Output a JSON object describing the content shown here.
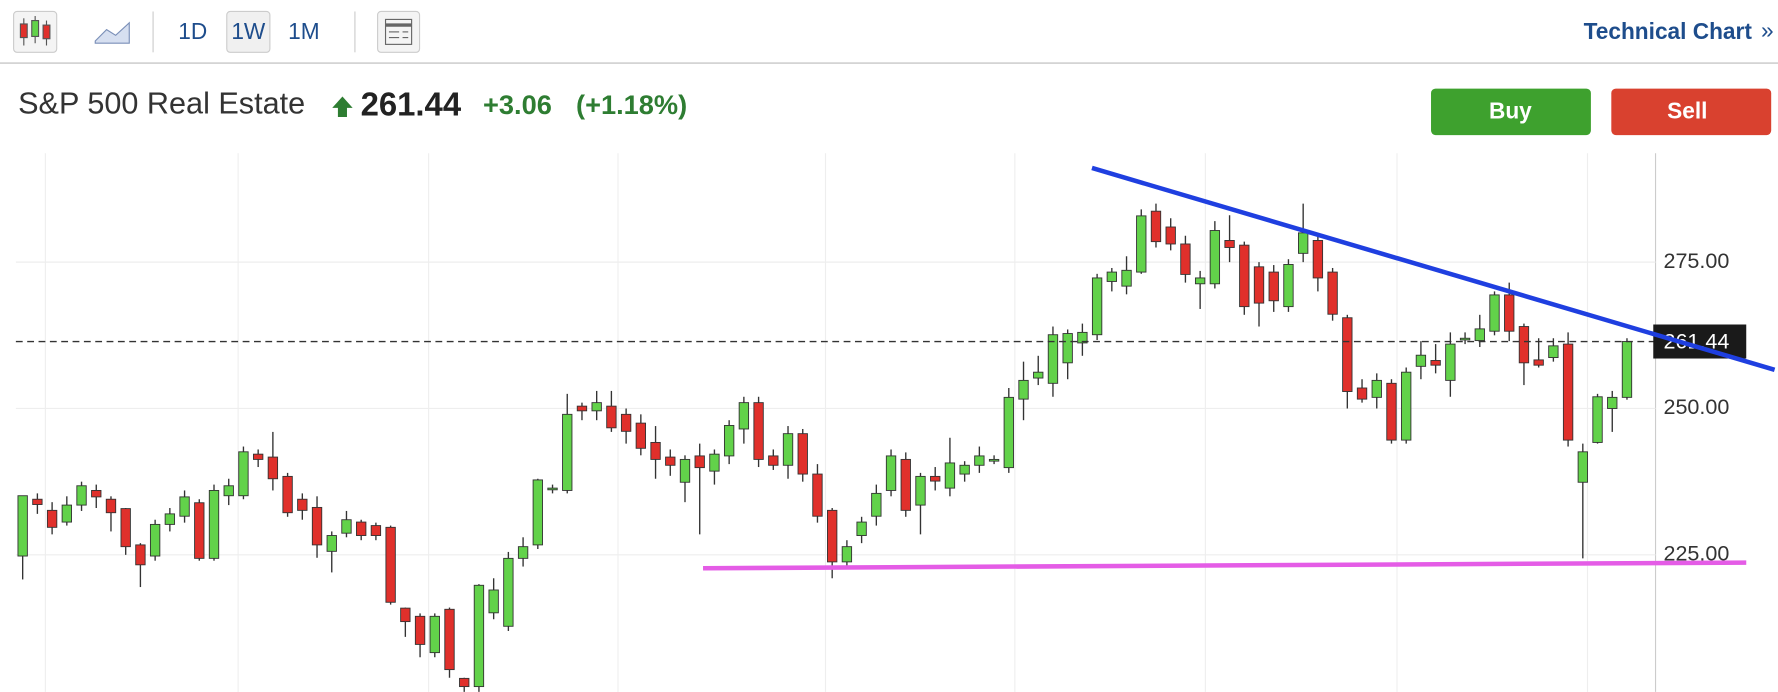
{
  "toolbar": {
    "periods": [
      "1D",
      "1W",
      "1M"
    ],
    "link": "Technical Chart",
    "link_icon": "»"
  },
  "header": {
    "name": "S&P 500 Real Estate",
    "price": 261.44,
    "change": "+3.06",
    "change_pct": "(+1.18%)"
  },
  "buttons": {
    "buy": "Buy",
    "sell": "Sell"
  },
  "chart_data": {
    "type": "candlestick",
    "up_color": "#62d24a",
    "down_color": "#e0302b",
    "grid": true,
    "ylim": [
      201.6,
      293.6
    ],
    "yticks": [
      {
        "value": 225,
        "label": "225.00"
      },
      {
        "value": 250,
        "label": "250.00"
      },
      {
        "value": 275,
        "label": "275.00"
      }
    ],
    "open": [
      224.8,
      234.5,
      232.6,
      230.6,
      233.5,
      236,
      234.5,
      232.9,
      226.7,
      224.8,
      230.2,
      231.6,
      233.9,
      224.4,
      235.1,
      235.1,
      242.2,
      241.7,
      238.4,
      234.5,
      233.1,
      225.6,
      228.7,
      230.6,
      230,
      229.7,
      215.9,
      214.5,
      208.3,
      215.7,
      203.9,
      202.5,
      215.1,
      212.8,
      224.4,
      226.7,
      236.4,
      236,
      250.4,
      249.6,
      250.4,
      249,
      247.5,
      244.2,
      241.7,
      237.4,
      241.9,
      239.3,
      241.9,
      246.5,
      251,
      241.9,
      240.3,
      245.7,
      238.8,
      232.6,
      223.8,
      228.3,
      231.6,
      236,
      241.3,
      233.5,
      238.4,
      236.4,
      238.8,
      240.3,
      241.3,
      239.9,
      251.6,
      255.2,
      254.3,
      257.8,
      261.2,
      262.6,
      271.7,
      270.9,
      273.3,
      283.7,
      281,
      278.1,
      271.3,
      271.3,
      278.7,
      277.9,
      274.2,
      273.3,
      267.4,
      276.5,
      278.7,
      273.3,
      265.5,
      253.5,
      251.9,
      254.3,
      244.6,
      257.2,
      258.2,
      254.8,
      261.8,
      261.6,
      263.2,
      269.4,
      264,
      258.3,
      258.7,
      261,
      237.4,
      244.2,
      250,
      251.9
    ],
    "high": [
      235.1,
      235.5,
      234,
      235,
      237.5,
      237,
      235,
      233,
      227,
      231,
      233,
      236,
      234.5,
      237,
      238,
      243.5,
      243,
      246,
      239,
      235.5,
      235,
      229,
      232.5,
      231,
      230.5,
      230,
      216,
      215,
      215,
      216,
      204,
      220,
      221,
      225.5,
      228,
      238,
      237,
      252.5,
      251,
      253,
      253,
      250,
      249,
      247,
      243,
      242,
      244,
      243,
      248,
      252,
      252,
      243,
      247,
      246.5,
      240.5,
      233,
      227.5,
      231.5,
      237,
      243,
      242.5,
      239,
      240,
      245,
      241,
      243.5,
      242,
      253.5,
      258,
      259,
      264,
      263.5,
      264.5,
      273,
      274,
      276,
      284,
      285,
      282.5,
      279.5,
      273.5,
      282,
      283,
      278.5,
      275,
      274.5,
      275.5,
      285,
      280,
      274,
      266,
      255,
      256,
      255,
      257,
      261.5,
      261,
      263,
      263,
      266,
      270,
      271.5,
      264.5,
      262,
      262,
      263,
      244,
      252.5,
      253,
      262
    ],
    "low": [
      220.8,
      232,
      228.5,
      230,
      232.5,
      233,
      229,
      225,
      219.5,
      224,
      229,
      230.5,
      224,
      224,
      233.5,
      234.5,
      240,
      236,
      231.5,
      231,
      224.5,
      222,
      228,
      227.5,
      227.5,
      216.5,
      211,
      207.5,
      207.5,
      204,
      201,
      201,
      214,
      212,
      223,
      226,
      235.5,
      235.5,
      248,
      248,
      246,
      244,
      242,
      238,
      238.5,
      234,
      228.5,
      237,
      240.5,
      244,
      240,
      239.5,
      238,
      237.5,
      230.5,
      221,
      223,
      227,
      230,
      235,
      231.5,
      228.5,
      236,
      235,
      237.5,
      239,
      240.5,
      239,
      248,
      254,
      252,
      255,
      259,
      261.7,
      270,
      269.5,
      273,
      277.5,
      277,
      271.5,
      267,
      270.5,
      275,
      266,
      264,
      266.5,
      266.5,
      275,
      270,
      265,
      250,
      251,
      250,
      244,
      244,
      255,
      256,
      252,
      261,
      260.5,
      262.5,
      261.5,
      254,
      257,
      258,
      243.5,
      224.4,
      244,
      246,
      251.5
    ],
    "close": [
      235.1,
      233.6,
      229.7,
      233.5,
      236.8,
      234.9,
      232.2,
      226.4,
      223.3,
      230.2,
      232,
      234.9,
      224.4,
      236,
      236.8,
      242.6,
      241.3,
      238,
      232.2,
      232.6,
      226.7,
      228.3,
      231,
      228.3,
      228.3,
      216.9,
      213.6,
      209.7,
      214.5,
      205.4,
      202.5,
      219.8,
      219,
      224.4,
      226.4,
      237.8,
      236.4,
      249,
      249.6,
      251,
      246.7,
      246.1,
      243.2,
      241.3,
      240.3,
      241.3,
      239.9,
      242.2,
      247.1,
      251,
      241.3,
      240.3,
      245.7,
      238.8,
      231.6,
      223.8,
      226.4,
      230.6,
      235.5,
      241.9,
      232.6,
      238.4,
      237.6,
      240.7,
      240.3,
      241.9,
      241.3,
      251.9,
      254.8,
      256.2,
      262.6,
      262.8,
      263,
      272.3,
      273.3,
      273.6,
      282.9,
      278.5,
      278.1,
      272.9,
      272.3,
      280.4,
      277.5,
      267.4,
      268,
      268.4,
      274.6,
      280,
      272.3,
      266.1,
      252.9,
      251.6,
      254.8,
      244.6,
      256.2,
      259.1,
      257.4,
      261,
      262,
      263.6,
      269.4,
      263.2,
      257.8,
      257.4,
      260.7,
      244.6,
      242.6,
      252,
      251.9,
      261.44
    ]
  }
}
